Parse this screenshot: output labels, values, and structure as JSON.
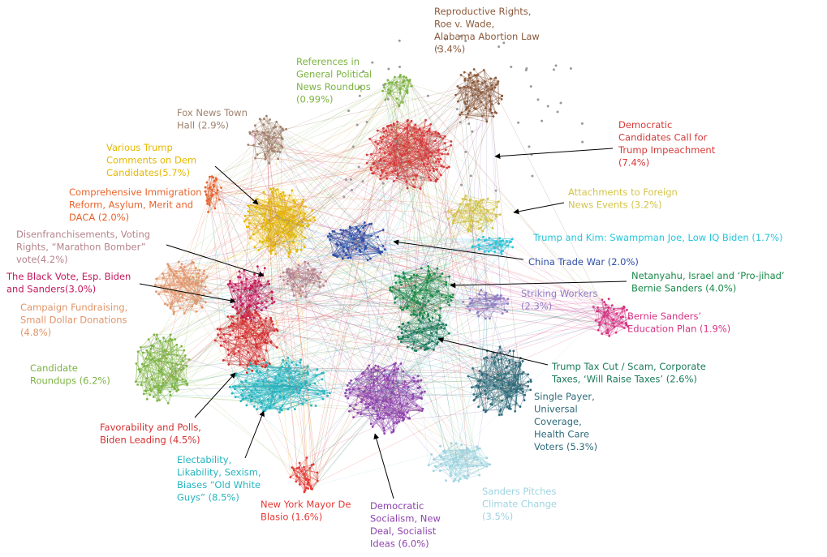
{
  "clusters": [
    {
      "lines": [
        "Reproductive Rights,",
        "Roe v. Wade,",
        "Alabama Abortion Law",
        "(3.4%)"
      ],
      "color": "#8b5a3c"
    },
    {
      "lines": [
        "References in",
        "General Political",
        "News Roundups",
        "(0.99%)"
      ],
      "color": "#7cb342"
    },
    {
      "lines": [
        "Fox News Town",
        "Hall (2.9%)"
      ],
      "color": "#a0826d"
    },
    {
      "lines": [
        "Democratic",
        "Candidates Call for",
        "Trump Impeachment",
        "(7.4%)"
      ],
      "color": "#d63a3a"
    },
    {
      "lines": [
        "Various Trump",
        "Comments on Dem",
        "Candidates(5.7%)"
      ],
      "color": "#e6b800"
    },
    {
      "lines": [
        "Comprehensive Immigration",
        "Reform, Asylum, Merit and",
        "DACA (2.0%)"
      ],
      "color": "#e8632b"
    },
    {
      "lines": [
        "Attachments to Foreign",
        "News Events (3.2%)"
      ],
      "color": "#d4c44a"
    },
    {
      "lines": [
        "Trump and Kim: Swampman Joe, Low IQ Biden (1.7%)"
      ],
      "color": "#26c6da"
    },
    {
      "lines": [
        "Disenfranchisements, Voting",
        "Rights, “Marathon Bomber”",
        "vote(4.2%)"
      ],
      "color": "#b5838d"
    },
    {
      "lines": [
        "China Trade War (2.0%)"
      ],
      "color": "#2f4fa8"
    },
    {
      "lines": [
        "The Black Vote, Esp. Biden",
        "and Sanders(3.0%)"
      ],
      "color": "#c2185b"
    },
    {
      "lines": [
        "Netanyahu, Israel and ‘Pro-jihad’",
        "Bernie Sanders (4.0%)"
      ],
      "color": "#1a8a4a"
    },
    {
      "lines": [
        "Striking Workers",
        "(2.3%)"
      ],
      "color": "#8e7cc3"
    },
    {
      "lines": [
        "Campaign Fundraising,",
        "Small Dollar Donations",
        "(4.8%)"
      ],
      "color": "#e0956a"
    },
    {
      "lines": [
        "Bernie Sanders’",
        "Education Plan  (1.9%)"
      ],
      "color": "#d63384"
    },
    {
      "lines": [
        "Candidate",
        "Roundups (6.2%)"
      ],
      "color": "#7cb342"
    },
    {
      "lines": [
        "Trump Tax Cut / Scam, Corporate",
        "Taxes, ‘Will Raise Taxes’ (2.6%)"
      ],
      "color": "#1a7a5a"
    },
    {
      "lines": [
        "Single Payer,",
        "Universal",
        "Coverage,",
        "Health Care",
        "Voters (5.3%)"
      ],
      "color": "#2e6b7a"
    },
    {
      "lines": [
        "Favorability and Polls,",
        "Biden Leading (4.5%)"
      ],
      "color": "#d32f2f"
    },
    {
      "lines": [
        "Electability,",
        "Likability, Sexism,",
        "Biases “Old White",
        "Guys” (8.5%)"
      ],
      "color": "#26b5c0"
    },
    {
      "lines": [
        "New York Mayor De",
        "Blasio (1.6%)"
      ],
      "color": "#e53935"
    },
    {
      "lines": [
        "Democratic",
        "Socialism, New",
        "Deal, Socialist",
        "Ideas (6.0%)"
      ],
      "color": "#8e44ad"
    },
    {
      "lines": [
        "Sanders Pitches",
        "Climate Change",
        "(3.5%)"
      ],
      "color": "#9fd3e0"
    }
  ]
}
